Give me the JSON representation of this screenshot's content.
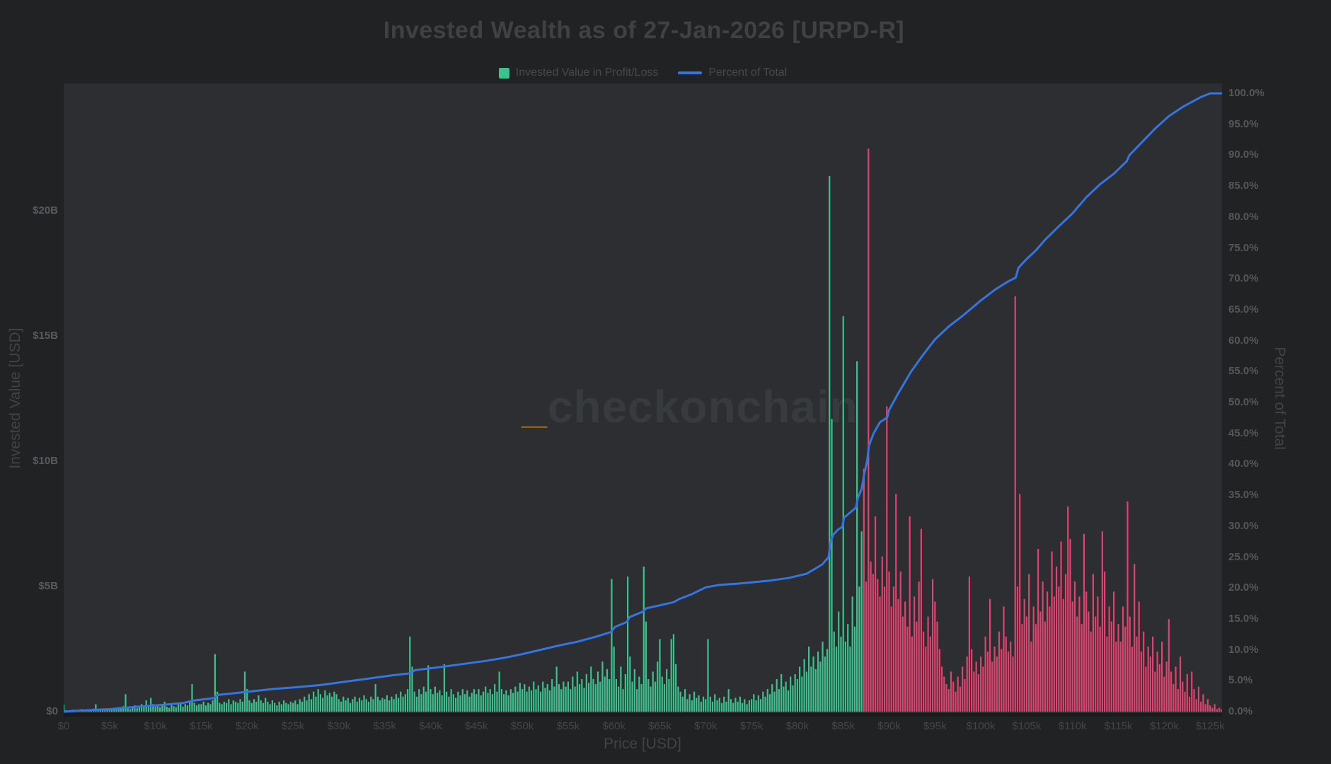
{
  "figure": {
    "title": "Invested Wealth as of 27-Jan-2026 [URPD-R]",
    "watermark_accent": "_",
    "watermark_text": "checkonchain"
  },
  "legend": [
    {
      "label": "Invested Value in Profit/Loss",
      "type": "swatch"
    },
    {
      "label": "Percent of Total",
      "type": "line"
    }
  ],
  "axes": {
    "x": {
      "title": "Price [USD]",
      "tick_labels": [
        "$0",
        "$5k",
        "$10k",
        "$15k",
        "$20k",
        "$25k",
        "$30k",
        "$35k",
        "$40k",
        "$45k",
        "$50k",
        "$55k",
        "$60k",
        "$65k",
        "$70k",
        "$75k",
        "$80k",
        "$85k",
        "$90k",
        "$95k",
        "$100k",
        "$105k",
        "$110k",
        "$115k",
        "$120k",
        "$125k"
      ],
      "tick_step_k": 5,
      "max_k": 126.3
    },
    "y_left": {
      "title": "Invested Value [USD]",
      "ticks": [
        {
          "label": "$0",
          "value_b": 0
        },
        {
          "label": "$5B",
          "value_b": 5
        },
        {
          "label": "$10B",
          "value_b": 10
        },
        {
          "label": "$15B",
          "value_b": 15
        },
        {
          "label": "$20B",
          "value_b": 20
        }
      ],
      "max_b": 25.1
    },
    "y_right": {
      "title": "Percent of Total",
      "tick_labels": [
        "0.0%",
        "5.0%",
        "10.0%",
        "15.0%",
        "20.0%",
        "25.0%",
        "30.0%",
        "35.0%",
        "40.0%",
        "45.0%",
        "50.0%",
        "55.0%",
        "60.0%",
        "65.0%",
        "70.0%",
        "75.0%",
        "80.0%",
        "85.0%",
        "90.0%",
        "95.0%",
        "100.0%"
      ],
      "tick_step_pct": 5,
      "max_pct": 100
    }
  },
  "colors": {
    "background": "#212224",
    "plot_background": "#2c2e31",
    "profit_green": "#3cc28e",
    "loss_red": "#e04370",
    "percent_line_blue": "#3575e0",
    "title_gray": "#3e4245",
    "watermark_gray": "#383b3e",
    "watermark_gold": "#8a6128"
  },
  "chart_data": {
    "type": "bar",
    "title": "Invested Wealth as of 27-Jan-2026 [URPD-R]",
    "xlabel": "Price [USD]",
    "ylabel_left": "Invested Value [USD]",
    "ylabel_right": "Percent of Total",
    "bar_series_name": "Invested Value in Profit/Loss",
    "line_series_name": "Percent of Total",
    "legend_position": "top-center",
    "grid": false,
    "x_range_k": [
      0,
      126.3
    ],
    "y_left_range_b": [
      0,
      25.1
    ],
    "y_right_range_pct": [
      0,
      100
    ],
    "bin_start_k": 0,
    "bin_size_k": 0.25,
    "profit_loss_boundary_k": 87.25,
    "bar_values_usd_billions": [
      0.28,
      0.06,
      0.04,
      0.05,
      0.08,
      0.05,
      0.04,
      0.06,
      0.1,
      0.07,
      0.05,
      0.08,
      0.06,
      0.12,
      0.3,
      0.09,
      0.07,
      0.1,
      0.08,
      0.12,
      0.1,
      0.14,
      0.09,
      0.12,
      0.18,
      0.12,
      0.22,
      0.7,
      0.15,
      0.1,
      0.18,
      0.25,
      0.14,
      0.2,
      0.3,
      0.18,
      0.45,
      0.25,
      0.55,
      0.3,
      0.2,
      0.3,
      0.18,
      0.25,
      0.4,
      0.2,
      0.15,
      0.3,
      0.22,
      0.18,
      0.28,
      0.35,
      0.2,
      0.3,
      0.25,
      0.4,
      1.1,
      0.35,
      0.25,
      0.3,
      0.3,
      0.4,
      0.25,
      0.35,
      0.3,
      0.45,
      2.3,
      0.8,
      0.35,
      0.3,
      0.4,
      0.35,
      0.5,
      0.3,
      0.45,
      0.4,
      0.35,
      0.5,
      0.4,
      1.6,
      0.9,
      0.45,
      0.35,
      0.5,
      0.4,
      0.65,
      0.45,
      0.35,
      0.55,
      0.4,
      0.3,
      0.45,
      0.35,
      0.25,
      0.4,
      0.3,
      0.45,
      0.35,
      0.3,
      0.4,
      0.35,
      0.45,
      0.3,
      0.5,
      0.4,
      0.6,
      0.45,
      0.7,
      0.5,
      0.8,
      0.6,
      0.9,
      0.7,
      0.55,
      0.85,
      0.65,
      0.75,
      0.6,
      0.8,
      0.7,
      0.5,
      0.4,
      0.6,
      0.45,
      0.55,
      0.35,
      0.5,
      0.6,
      0.4,
      0.55,
      0.45,
      0.65,
      0.5,
      0.4,
      0.6,
      0.5,
      1.1,
      0.6,
      0.45,
      0.55,
      0.5,
      0.65,
      0.45,
      0.6,
      0.5,
      0.7,
      0.55,
      0.8,
      0.6,
      0.7,
      0.9,
      3.0,
      1.8,
      0.8,
      0.6,
      0.9,
      0.7,
      1.0,
      0.8,
      1.85,
      0.9,
      0.7,
      1.0,
      0.75,
      0.85,
      0.65,
      1.9,
      0.8,
      0.6,
      0.9,
      0.7,
      0.55,
      0.8,
      0.65,
      0.9,
      0.7,
      0.85,
      0.6,
      0.75,
      0.9,
      0.7,
      0.9,
      0.65,
      0.8,
      1.0,
      0.75,
      0.9,
      0.7,
      1.1,
      0.8,
      1.6,
      0.9,
      0.7,
      0.85,
      0.65,
      0.9,
      0.75,
      1.0,
      0.8,
      1.15,
      0.9,
      1.1,
      0.8,
      1.0,
      0.85,
      1.2,
      0.9,
      1.05,
      0.8,
      1.2,
      0.95,
      1.1,
      0.85,
      1.3,
      1.0,
      1.8,
      1.1,
      0.9,
      1.2,
      1.0,
      1.2,
      0.9,
      1.4,
      1.0,
      1.6,
      1.1,
      1.3,
      0.95,
      1.5,
      1.15,
      1.8,
      1.3,
      1.1,
      1.6,
      1.2,
      2.0,
      1.4,
      1.7,
      1.3,
      5.3,
      2.6,
      1.3,
      1.0,
      1.8,
      0.9,
      1.5,
      5.4,
      2.2,
      1.2,
      1.7,
      0.9,
      1.4,
      1.1,
      5.8,
      3.6,
      1.3,
      1.0,
      1.6,
      1.2,
      2.0,
      2.9,
      1.4,
      1.1,
      1.7,
      1.3,
      2.9,
      3.1,
      1.9,
      1.0,
      0.8,
      0.6,
      0.9,
      0.5,
      0.7,
      0.45,
      0.8,
      0.55,
      0.65,
      0.4,
      0.6,
      0.5,
      2.9,
      0.6,
      0.4,
      0.7,
      0.45,
      0.55,
      0.35,
      0.6,
      0.4,
      0.9,
      0.5,
      0.35,
      0.55,
      0.4,
      0.6,
      0.35,
      0.5,
      0.3,
      0.45,
      0.5,
      0.7,
      0.45,
      0.65,
      0.5,
      0.8,
      0.6,
      0.9,
      0.7,
      1.1,
      0.8,
      1.3,
      0.9,
      1.5,
      1.0,
      1.2,
      0.85,
      1.4,
      1.05,
      1.5,
      1.3,
      1.8,
      1.4,
      2.1,
      1.6,
      2.6,
      1.8,
      2.2,
      1.7,
      2.4,
      2.0,
      2.8,
      2.2,
      2.5,
      21.4,
      11.7,
      3.2,
      2.6,
      4.0,
      3.0,
      15.8,
      2.8,
      3.5,
      2.6,
      4.6,
      3.4,
      14.0,
      5.0,
      7.2,
      9.7,
      5.2,
      22.5,
      6.0,
      5.5,
      7.8,
      5.3,
      4.6,
      6.2,
      5.0,
      12.2,
      5.6,
      4.2,
      5.0,
      8.7,
      4.5,
      5.6,
      3.8,
      4.4,
      3.4,
      7.8,
      3.0,
      4.6,
      3.6,
      5.2,
      7.3,
      3.2,
      2.6,
      3.8,
      3.0,
      5.3,
      4.4,
      3.6,
      2.5,
      1.8,
      1.4,
      1.1,
      0.9,
      1.6,
      1.2,
      0.8,
      1.4,
      1.0,
      1.8,
      1.3,
      2.2,
      5.4,
      2.5,
      1.6,
      2.0,
      1.5,
      2.2,
      1.8,
      3.0,
      2.4,
      4.5,
      2.0,
      2.6,
      2.2,
      3.2,
      2.5,
      4.2,
      3.0,
      2.4,
      2.8,
      2.2,
      16.6,
      5.0,
      8.7,
      3.5,
      4.5,
      3.8,
      5.5,
      2.8,
      4.2,
      3.5,
      6.5,
      4.0,
      5.2,
      3.6,
      4.8,
      4.2,
      6.4,
      4.6,
      5.8,
      5.0,
      6.8,
      4.5,
      5.5,
      8.2,
      6.9,
      4.4,
      5.2,
      3.8,
      4.6,
      3.5,
      7.1,
      4.8,
      4.0,
      3.2,
      5.5,
      3.8,
      4.6,
      3.4,
      7.2,
      5.6,
      3.0,
      4.2,
      3.6,
      4.8,
      2.8,
      3.5,
      2.8,
      4.2,
      3.4,
      8.4,
      3.8,
      2.6,
      5.9,
      3.0,
      4.4,
      2.4,
      3.2,
      1.8,
      2.6,
      2.2,
      3.0,
      1.6,
      2.4,
      1.9,
      2.8,
      1.4,
      2.0,
      3.7,
      1.6,
      1.1,
      1.8,
      0.9,
      2.2,
      1.2,
      0.8,
      1.5,
      0.6,
      1.6,
      0.9,
      0.5,
      1.0,
      0.4,
      0.7,
      0.3,
      0.5,
      0.25,
      0.15,
      0.3,
      0.1,
      0.15,
      0.08
    ],
    "percent_of_total_line": [
      [
        0,
        0
      ],
      [
        2,
        0.2
      ],
      [
        5,
        0.4
      ],
      [
        8,
        0.8
      ],
      [
        10,
        1
      ],
      [
        13,
        1.4
      ],
      [
        14.2,
        1.8
      ],
      [
        16.4,
        2.2
      ],
      [
        16.8,
        2.7
      ],
      [
        18,
        2.9
      ],
      [
        20,
        3.2
      ],
      [
        23,
        3.7
      ],
      [
        25,
        3.9
      ],
      [
        28,
        4.3
      ],
      [
        30,
        4.7
      ],
      [
        32,
        5.1
      ],
      [
        34,
        5.5
      ],
      [
        36,
        5.9
      ],
      [
        37.8,
        6.2
      ],
      [
        38.3,
        6.7
      ],
      [
        40,
        7
      ],
      [
        42,
        7.4
      ],
      [
        44,
        7.8
      ],
      [
        46,
        8.2
      ],
      [
        48,
        8.7
      ],
      [
        50,
        9.3
      ],
      [
        52,
        10
      ],
      [
        54,
        10.7
      ],
      [
        56,
        11.3
      ],
      [
        58,
        12.1
      ],
      [
        59.7,
        12.9
      ],
      [
        60.1,
        13.7
      ],
      [
        61.4,
        14.5
      ],
      [
        61.7,
        15.3
      ],
      [
        63.2,
        16.2
      ],
      [
        63.5,
        16.7
      ],
      [
        65,
        17.2
      ],
      [
        66.5,
        17.7
      ],
      [
        67.1,
        18.2
      ],
      [
        68.5,
        19
      ],
      [
        70,
        20.1
      ],
      [
        71.5,
        20.5
      ],
      [
        73.5,
        20.7
      ],
      [
        75,
        20.9
      ],
      [
        77,
        21.2
      ],
      [
        79,
        21.6
      ],
      [
        81,
        22.3
      ],
      [
        82.7,
        23.8
      ],
      [
        83.4,
        25
      ],
      [
        83.6,
        27.3
      ],
      [
        83.9,
        28.6
      ],
      [
        84.4,
        29.4
      ],
      [
        84.9,
        29.9
      ],
      [
        85.1,
        31.4
      ],
      [
        85.9,
        32.4
      ],
      [
        86.4,
        33
      ],
      [
        86.6,
        34.6
      ],
      [
        87,
        36
      ],
      [
        87.3,
        38.5
      ],
      [
        87.6,
        40.5
      ],
      [
        87.8,
        43
      ],
      [
        88.3,
        45
      ],
      [
        89,
        46.8
      ],
      [
        89.8,
        47.6
      ],
      [
        90,
        48.8
      ],
      [
        91,
        51.5
      ],
      [
        92,
        54
      ],
      [
        92.4,
        55
      ],
      [
        93.5,
        57.3
      ],
      [
        94,
        58.3
      ],
      [
        95,
        60.2
      ],
      [
        96.5,
        62.3
      ],
      [
        98,
        64
      ],
      [
        100,
        66.5
      ],
      [
        101.5,
        68.2
      ],
      [
        103,
        69.6
      ],
      [
        103.8,
        70.2
      ],
      [
        104.1,
        71.8
      ],
      [
        105,
        73.2
      ],
      [
        106,
        74.6
      ],
      [
        107,
        76.3
      ],
      [
        108.5,
        78.5
      ],
      [
        110,
        80.6
      ],
      [
        111.5,
        83.2
      ],
      [
        113,
        85.3
      ],
      [
        114.5,
        87
      ],
      [
        115.9,
        89
      ],
      [
        116.2,
        90
      ],
      [
        117.5,
        92
      ],
      [
        119,
        94.3
      ],
      [
        120.5,
        96.3
      ],
      [
        122,
        97.8
      ],
      [
        123,
        98.6
      ],
      [
        124,
        99.4
      ],
      [
        125,
        100
      ],
      [
        126.4,
        100
      ]
    ]
  }
}
